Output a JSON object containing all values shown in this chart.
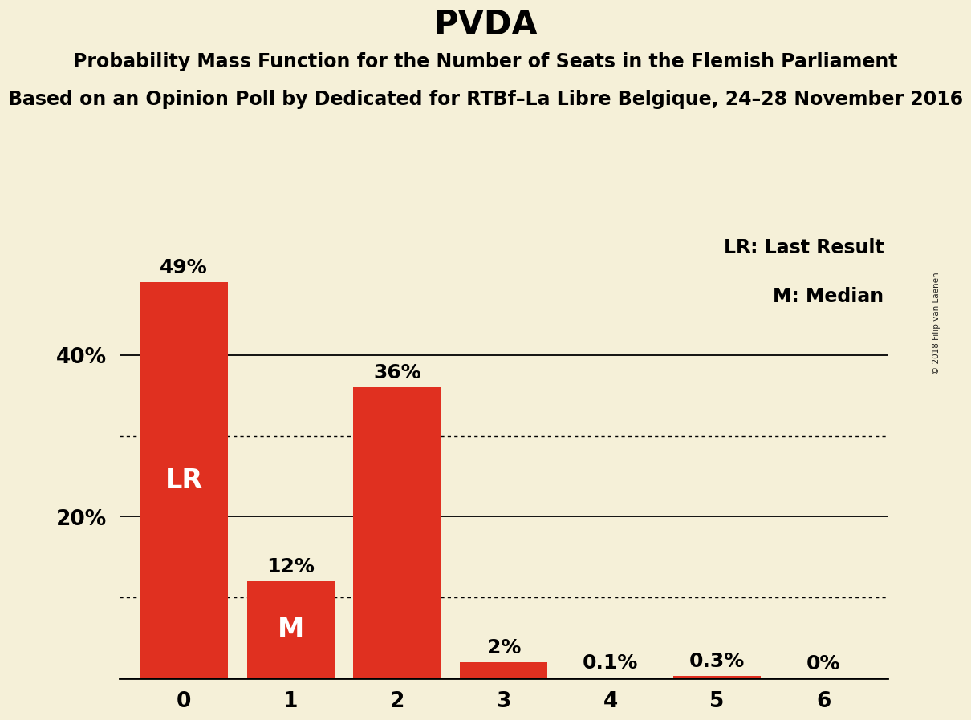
{
  "title": "PVDA",
  "subtitle1": "Probability Mass Function for the Number of Seats in the Flemish Parliament",
  "subtitle2": "Based on an Opinion Poll by Dedicated for RTBf–La Libre Belgique, 24–28 November 2016",
  "watermark": "© 2018 Filip van Laenen",
  "categories": [
    0,
    1,
    2,
    3,
    4,
    5,
    6
  ],
  "values": [
    49,
    12,
    36,
    2,
    0.1,
    0.3,
    0
  ],
  "labels": [
    "49%",
    "12%",
    "36%",
    "2%",
    "0.1%",
    "0.3%",
    "0%"
  ],
  "bar_color": "#e03020",
  "background_color": "#f5f0d8",
  "lr_bar": 0,
  "median_bar": 1,
  "lr_label": "LR",
  "median_label": "M",
  "legend_lr": "LR: Last Result",
  "legend_m": "M: Median",
  "ylim": [
    0,
    55
  ],
  "yticks": [
    20,
    40
  ],
  "ytick_labels": [
    "20%",
    "40%"
  ],
  "solid_grid_ticks": [
    20,
    40
  ],
  "dotted_grid_ticks": [
    10,
    30
  ],
  "title_fontsize": 30,
  "subtitle_fontsize": 17,
  "label_fontsize": 18,
  "axis_fontsize": 19,
  "legend_fontsize": 17,
  "inbar_fontsize": 24,
  "bar_width": 0.82
}
